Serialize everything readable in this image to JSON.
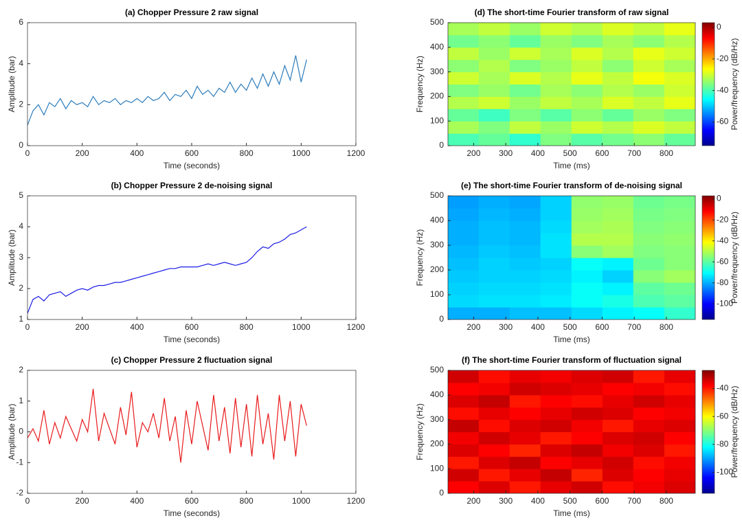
{
  "chart_data": [
    {
      "type": "line",
      "title": "(a) Chopper Pressure 2 raw signal",
      "x_label": "Time (seconds)",
      "y_label": "Amplitude (bar)",
      "color": "#2b7bba",
      "xlim": [
        0,
        1200
      ],
      "xticks": [
        0,
        200,
        400,
        600,
        800,
        1000,
        1200
      ],
      "ylim": [
        0,
        6
      ],
      "yticks": [
        0,
        2,
        4,
        6
      ],
      "x": [
        0,
        20,
        40,
        60,
        80,
        100,
        120,
        140,
        160,
        180,
        200,
        220,
        240,
        260,
        280,
        300,
        320,
        340,
        360,
        380,
        400,
        420,
        440,
        460,
        480,
        500,
        520,
        540,
        560,
        580,
        600,
        620,
        640,
        660,
        680,
        700,
        720,
        740,
        760,
        780,
        800,
        820,
        840,
        860,
        880,
        900,
        920,
        940,
        960,
        980,
        1000,
        1020
      ],
      "values": [
        1.0,
        1.7,
        2.0,
        1.5,
        2.1,
        1.9,
        2.3,
        1.8,
        2.2,
        2.0,
        2.1,
        1.9,
        2.4,
        2.0,
        2.2,
        2.1,
        2.3,
        2.0,
        2.2,
        2.1,
        2.3,
        2.1,
        2.4,
        2.2,
        2.3,
        2.6,
        2.2,
        2.5,
        2.4,
        2.7,
        2.3,
        2.9,
        2.5,
        2.7,
        2.4,
        2.8,
        2.6,
        3.1,
        2.6,
        3.0,
        2.7,
        3.3,
        2.8,
        3.5,
        2.9,
        3.6,
        3.0,
        3.9,
        3.2,
        4.4,
        3.1,
        4.2
      ]
    },
    {
      "type": "line",
      "title": "(b) Chopper Pressure 2 de-noising signal",
      "x_label": "Time (seconds)",
      "y_label": "Amplitude (bar)",
      "color": "#1a1ae6",
      "xlim": [
        0,
        1200
      ],
      "xticks": [
        0,
        200,
        400,
        600,
        800,
        1000,
        1200
      ],
      "ylim": [
        1,
        5
      ],
      "yticks": [
        1,
        2,
        3,
        4,
        5
      ],
      "x": [
        0,
        20,
        40,
        60,
        80,
        100,
        120,
        140,
        160,
        180,
        200,
        220,
        240,
        260,
        280,
        300,
        320,
        340,
        360,
        380,
        400,
        420,
        440,
        460,
        480,
        500,
        520,
        540,
        560,
        580,
        600,
        620,
        640,
        660,
        680,
        700,
        720,
        740,
        760,
        780,
        800,
        820,
        840,
        860,
        880,
        900,
        920,
        940,
        960,
        980,
        1000,
        1020
      ],
      "values": [
        1.2,
        1.65,
        1.75,
        1.6,
        1.8,
        1.85,
        1.9,
        1.75,
        1.85,
        1.95,
        2.0,
        1.95,
        2.05,
        2.1,
        2.1,
        2.15,
        2.2,
        2.2,
        2.25,
        2.3,
        2.35,
        2.4,
        2.45,
        2.5,
        2.55,
        2.6,
        2.65,
        2.65,
        2.7,
        2.7,
        2.7,
        2.7,
        2.75,
        2.8,
        2.75,
        2.8,
        2.85,
        2.8,
        2.75,
        2.8,
        2.85,
        3.0,
        3.2,
        3.35,
        3.3,
        3.45,
        3.5,
        3.6,
        3.75,
        3.8,
        3.9,
        4.0
      ]
    },
    {
      "type": "line",
      "title": "(c) Chopper Pressure 2 fluctuation signal",
      "x_label": "Time (seconds)",
      "y_label": "Amplitude (bar)",
      "color": "#e8191a",
      "xlim": [
        0,
        1200
      ],
      "xticks": [
        0,
        200,
        400,
        600,
        800,
        1000,
        1200
      ],
      "ylim": [
        -2,
        2
      ],
      "yticks": [
        -2,
        -1,
        0,
        1,
        2
      ],
      "x": [
        0,
        20,
        40,
        60,
        80,
        100,
        120,
        140,
        160,
        180,
        200,
        220,
        240,
        260,
        280,
        300,
        320,
        340,
        360,
        380,
        400,
        420,
        440,
        460,
        480,
        500,
        520,
        540,
        560,
        580,
        600,
        620,
        640,
        660,
        680,
        700,
        720,
        740,
        760,
        780,
        800,
        820,
        840,
        860,
        880,
        900,
        920,
        940,
        960,
        980,
        1000,
        1020
      ],
      "values": [
        -0.2,
        0.1,
        -0.3,
        0.7,
        -0.4,
        0.3,
        -0.2,
        0.5,
        0.1,
        -0.3,
        0.4,
        0.0,
        1.4,
        -0.3,
        0.6,
        0.1,
        -0.4,
        0.8,
        -0.1,
        1.3,
        -0.5,
        0.3,
        0.0,
        0.6,
        -0.2,
        1.1,
        -0.3,
        0.5,
        -1.0,
        0.7,
        -0.4,
        1.0,
        0.2,
        -0.6,
        1.2,
        -0.3,
        0.8,
        -0.7,
        1.1,
        -0.5,
        0.9,
        -0.8,
        1.2,
        -0.4,
        0.6,
        -0.9,
        1.2,
        -0.3,
        1.0,
        -0.8,
        0.9,
        0.2
      ]
    },
    {
      "type": "heatmap",
      "title": "(d) The short-time Fourier transform of raw signal",
      "x_label": "Time (ms)",
      "y_label": "Frequency (Hz)",
      "colorbar_label": "Power/frequency (dB/Hz)",
      "colormap": "jet",
      "xlim": [
        120,
        890
      ],
      "xticks": [
        200,
        300,
        400,
        500,
        600,
        700,
        800
      ],
      "ylim": [
        0,
        500
      ],
      "yticks": [
        0,
        100,
        200,
        300,
        400,
        500
      ],
      "clim": [
        -75,
        3
      ],
      "cticks": [
        0,
        -20,
        -40,
        -60
      ],
      "x": [
        168,
        264,
        360,
        456,
        553,
        649,
        745,
        842
      ],
      "y": [
        25,
        75,
        125,
        175,
        225,
        275,
        325,
        375,
        425,
        475
      ],
      "z": [
        [
          -40,
          -38,
          -42,
          -36,
          -39,
          -37,
          -35,
          -38
        ],
        [
          -33,
          -36,
          -31,
          -34,
          -30,
          -32,
          -29,
          -31
        ],
        [
          -38,
          -41,
          -36,
          -39,
          -35,
          -38,
          -34,
          -36
        ],
        [
          -32,
          -30,
          -34,
          -31,
          -33,
          -29,
          -31,
          -28
        ],
        [
          -36,
          -34,
          -37,
          -33,
          -35,
          -32,
          -34,
          -30
        ],
        [
          -30,
          -33,
          -29,
          -32,
          -28,
          -31,
          -27,
          -29
        ],
        [
          -35,
          -32,
          -36,
          -34,
          -31,
          -35,
          -30,
          -33
        ],
        [
          -31,
          -34,
          -30,
          -33,
          -29,
          -32,
          -28,
          -30
        ],
        [
          -37,
          -35,
          -38,
          -34,
          -36,
          -33,
          -35,
          -32
        ],
        [
          -33,
          -31,
          -34,
          -30,
          -32,
          -29,
          -31,
          -28
        ]
      ]
    },
    {
      "type": "heatmap",
      "title": "(e) The short-time Fourier transform of  de-noising signal",
      "x_label": "Time (ms)",
      "y_label": "Frequency (Hz)",
      "colorbar_label": "Power/frequency (dB/Hz)",
      "colormap": "jet",
      "xlim": [
        120,
        890
      ],
      "xticks": [
        200,
        300,
        400,
        500,
        600,
        700,
        800
      ],
      "ylim": [
        0,
        500
      ],
      "yticks": [
        0,
        100,
        200,
        300,
        400,
        500
      ],
      "clim": [
        -115,
        3
      ],
      "cticks": [
        0,
        -20,
        -40,
        -60,
        -80,
        -100
      ],
      "x": [
        168,
        264,
        360,
        456,
        553,
        649,
        745,
        842
      ],
      "y": [
        25,
        75,
        125,
        175,
        225,
        275,
        325,
        375,
        425,
        475
      ],
      "z": [
        [
          -80,
          -80,
          -78,
          -78,
          -75,
          -72,
          -70,
          -65
        ],
        [
          -75,
          -74,
          -74,
          -73,
          -70,
          -68,
          -62,
          -60
        ],
        [
          -76,
          -75,
          -75,
          -74,
          -70,
          -72,
          -60,
          -58
        ],
        [
          -77,
          -76,
          -76,
          -75,
          -72,
          -76,
          -55,
          -52
        ],
        [
          -78,
          -76,
          -77,
          -76,
          -70,
          -72,
          -58,
          -55
        ],
        [
          -79,
          -77,
          -78,
          -74,
          -55,
          -52,
          -56,
          -55
        ],
        [
          -80,
          -78,
          -79,
          -74,
          -50,
          -50,
          -55,
          -54
        ],
        [
          -80,
          -78,
          -79,
          -75,
          -52,
          -51,
          -56,
          -55
        ],
        [
          -81,
          -79,
          -80,
          -76,
          -53,
          -52,
          -57,
          -56
        ],
        [
          -82,
          -80,
          -81,
          -76,
          -54,
          -53,
          -58,
          -57
        ]
      ]
    },
    {
      "type": "heatmap",
      "title": "(f) The short-time Fourier transform of fluctuation signal",
      "x_label": "Time (ms)",
      "y_label": "Frequency (Hz)",
      "colorbar_label": "Power/frequency (dB/Hz)",
      "colormap": "jet",
      "xlim": [
        120,
        890
      ],
      "xticks": [
        200,
        300,
        400,
        500,
        600,
        700,
        800
      ],
      "ylim": [
        0,
        500
      ],
      "yticks": [
        0,
        100,
        200,
        300,
        400,
        500
      ],
      "clim": [
        -115,
        -27
      ],
      "cticks": [
        -40,
        -60,
        -80,
        -100
      ],
      "x": [
        168,
        264,
        360,
        456,
        553,
        649,
        745,
        842
      ],
      "y": [
        25,
        75,
        125,
        175,
        225,
        275,
        325,
        375,
        425,
        475
      ],
      "z": [
        [
          -38,
          -35,
          -40,
          -36,
          -34,
          -39,
          -37,
          -35
        ],
        [
          -34,
          -40,
          -36,
          -33,
          -41,
          -35,
          -38,
          -36
        ],
        [
          -40,
          -35,
          -33,
          -38,
          -36,
          -34,
          -39,
          -37
        ],
        [
          -35,
          -38,
          -41,
          -35,
          -33,
          -37,
          -35,
          -40
        ],
        [
          -37,
          -34,
          -36,
          -40,
          -38,
          -35,
          -34,
          -38
        ],
        [
          -33,
          -39,
          -35,
          -34,
          -37,
          -40,
          -36,
          -35
        ],
        [
          -39,
          -36,
          -38,
          -36,
          -34,
          -35,
          -38,
          -37
        ],
        [
          -35,
          -33,
          -40,
          -38,
          -39,
          -36,
          -34,
          -36
        ],
        [
          -38,
          -37,
          -34,
          -35,
          -36,
          -38,
          -37,
          -39
        ],
        [
          -34,
          -39,
          -36,
          -37,
          -35,
          -34,
          -40,
          -36
        ]
      ]
    }
  ]
}
